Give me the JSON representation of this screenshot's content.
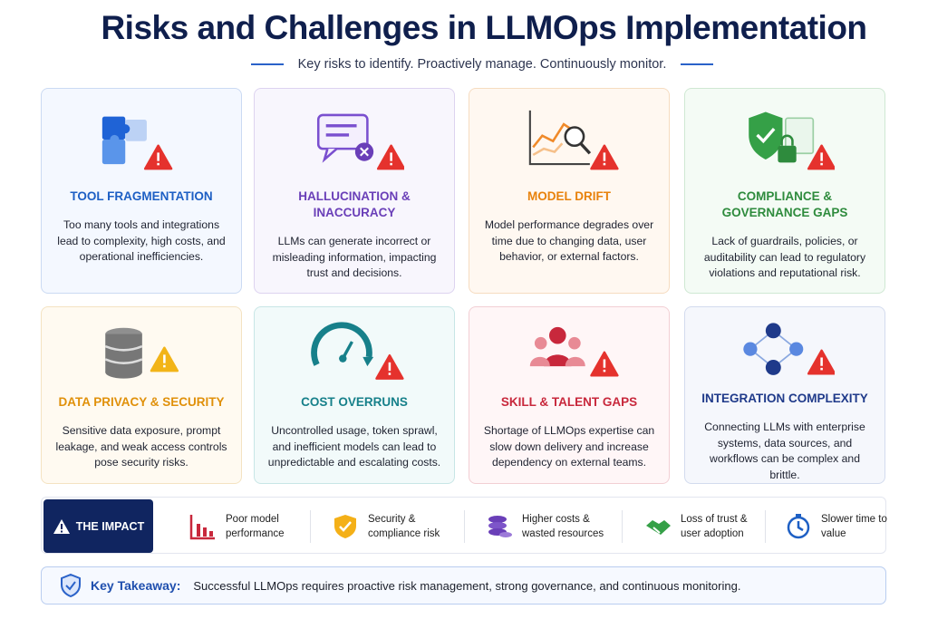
{
  "header": {
    "title": "Risks and Challenges in LLMOps Implementation",
    "subtitle": "Key risks to identify. Proactively manage. Continuously monitor."
  },
  "cards": [
    {
      "title": "TOOL FRAGMENTATION",
      "description": "Too many tools and integrations lead to complexity, high costs, and operational inefficiencies."
    },
    {
      "title": "HALLUCINATION & INACCURACY",
      "description": "LLMs can generate incorrect or misleading information, impacting trust and decisions."
    },
    {
      "title": "MODEL DRIFT",
      "description": "Model performance degrades over time due to changing data, user behavior, or external factors."
    },
    {
      "title": "COMPLIANCE & GOVERNANCE GAPS",
      "description": "Lack of guardrails, policies, or auditability can lead to regulatory violations and reputational risk."
    },
    {
      "title": "DATA PRIVACY & SECURITY",
      "description": "Sensitive data exposure, prompt leakage, and weak access controls pose security risks."
    },
    {
      "title": "COST OVERRUNS",
      "description": "Uncontrolled usage, token sprawl, and inefficient models can lead to unpredictable and escalating costs."
    },
    {
      "title": "SKILL & TALENT GAPS",
      "description": "Shortage of LLMOps expertise can slow down delivery and increase dependency on external teams."
    },
    {
      "title": "INTEGRATION COMPLEXITY",
      "description": "Connecting LLMs with enterprise systems, data sources, and workflows can be complex and brittle."
    }
  ],
  "impact": {
    "label": "THE IMPACT",
    "items": [
      "Poor model performance",
      "Security & compliance risk",
      "Higher costs & wasted resources",
      "Loss of trust & user adoption",
      "Slower time to value"
    ]
  },
  "takeaway": {
    "label": "Key Takeaway:",
    "text": "Successful LLMOps requires proactive risk management, strong governance, and continuous monitoring."
  }
}
